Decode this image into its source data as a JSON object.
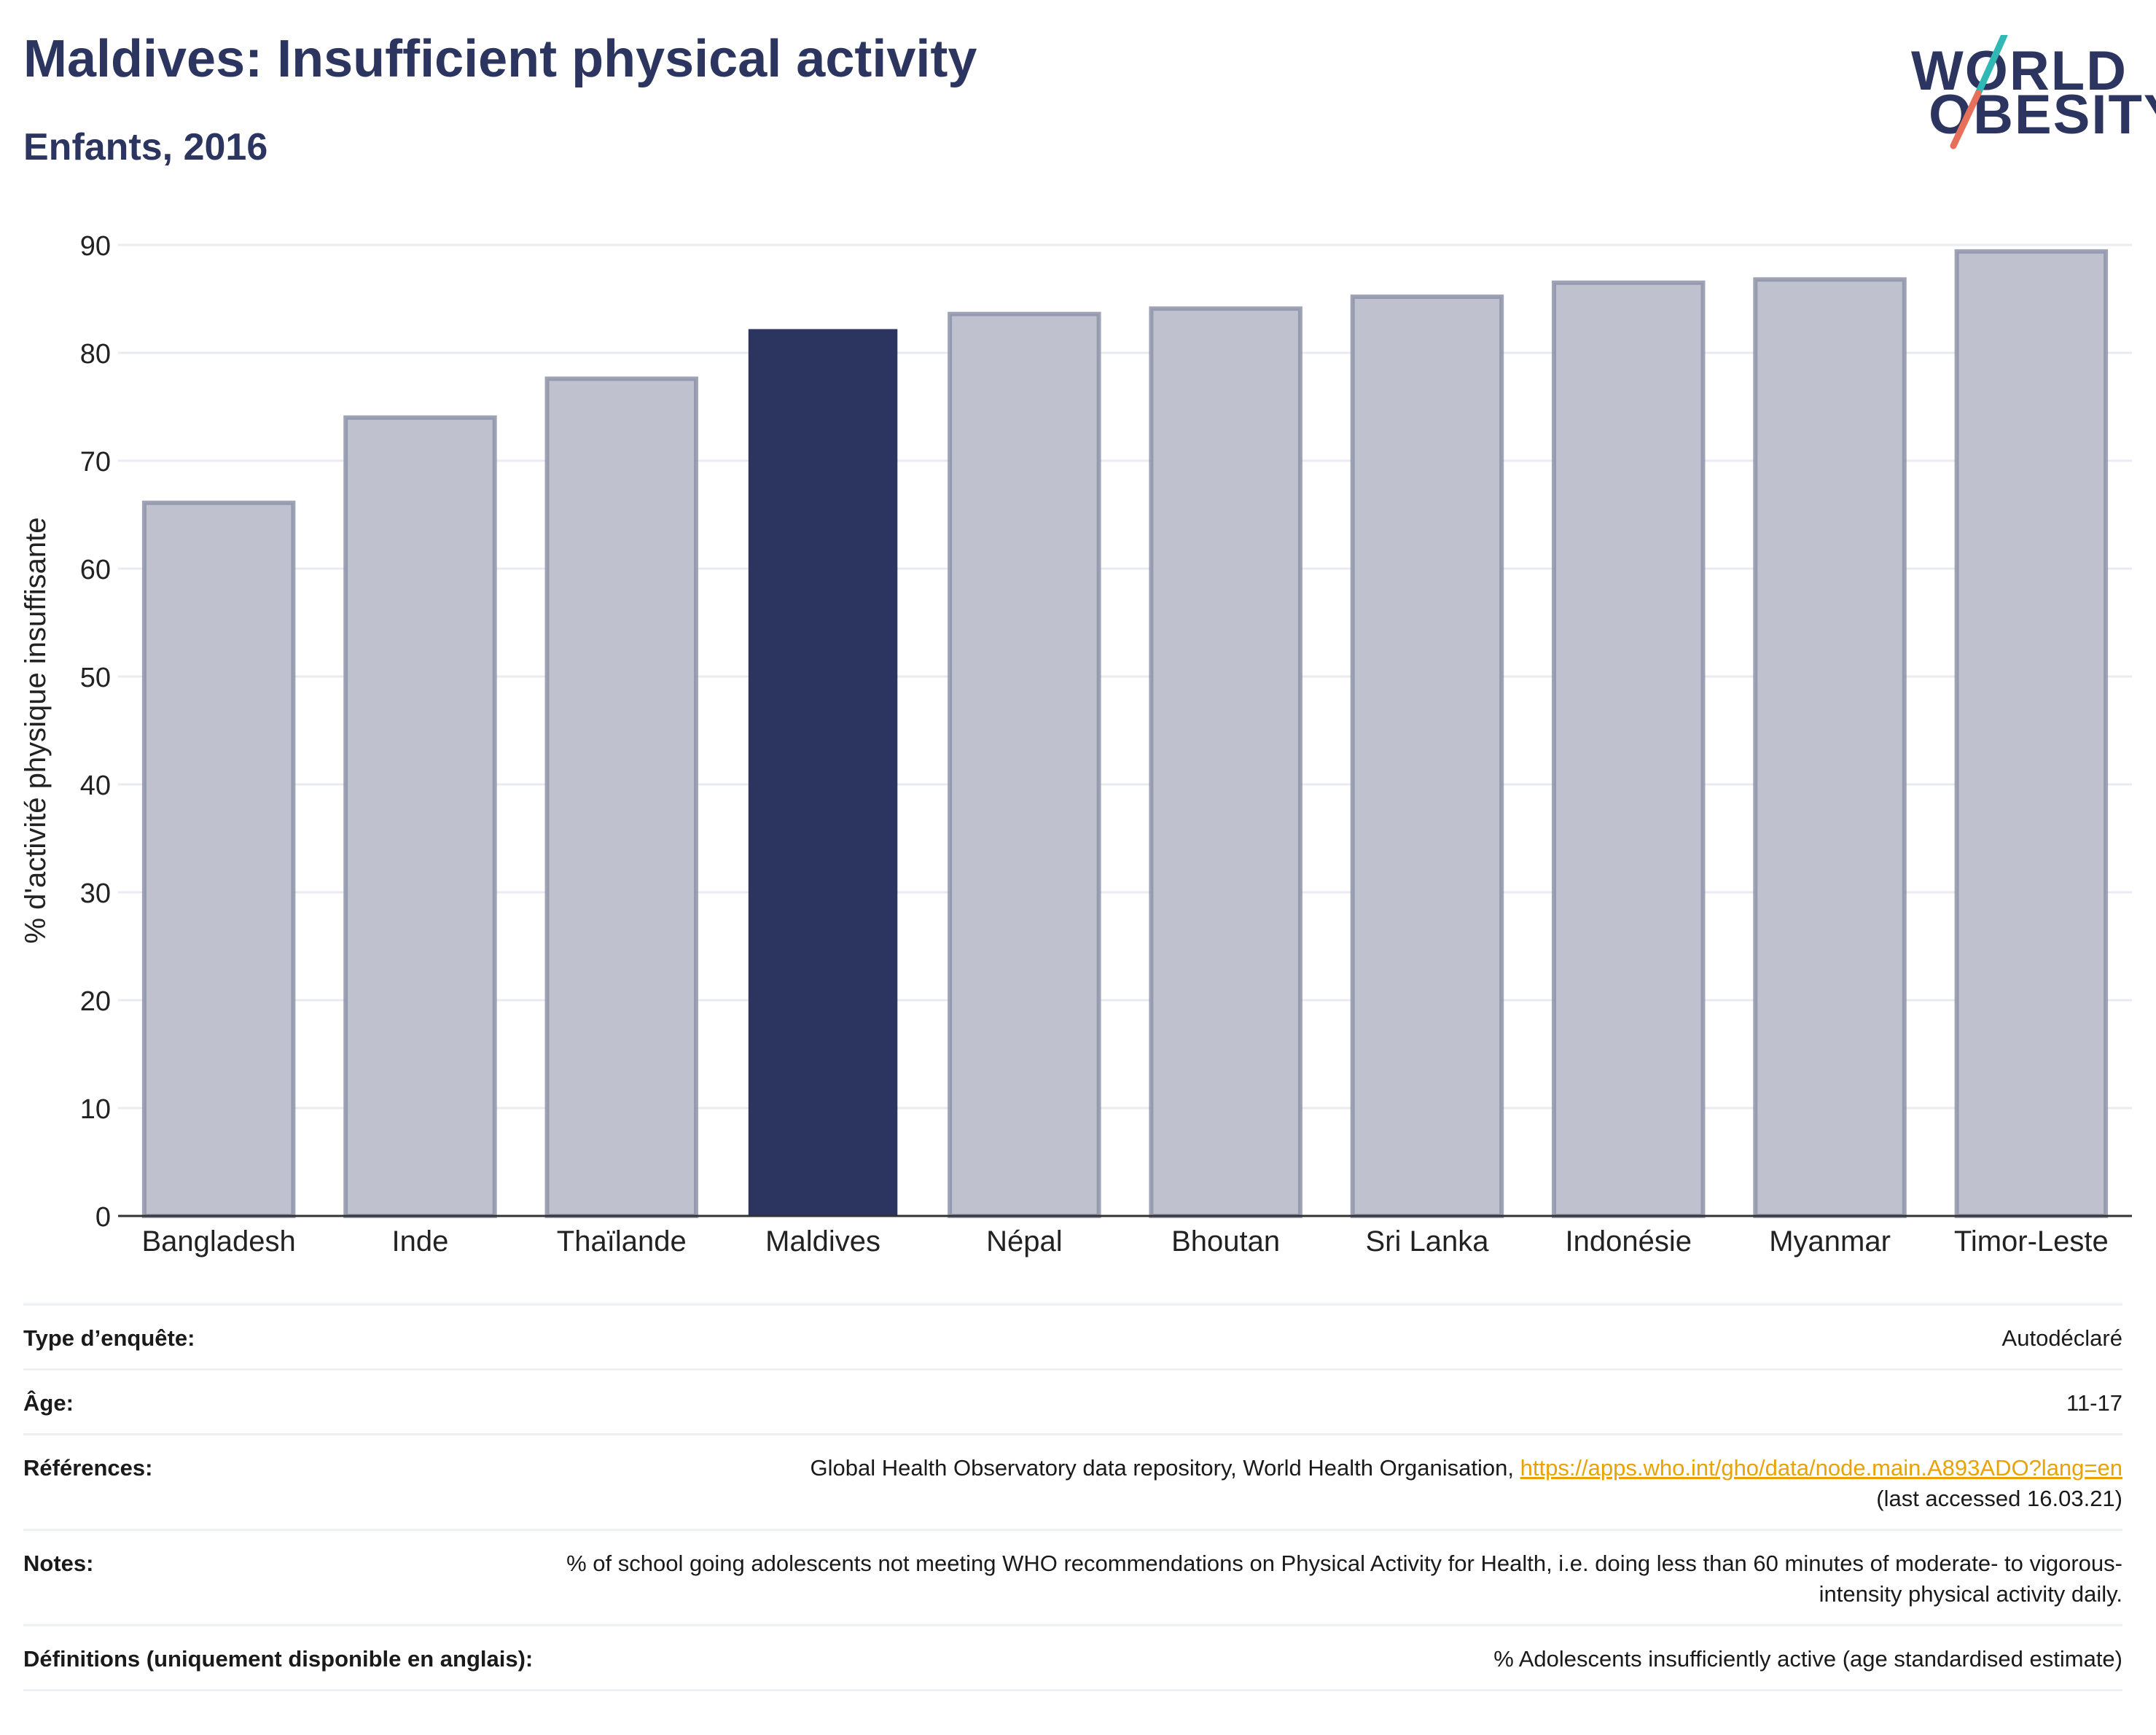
{
  "header": {
    "title": "Maldives: Insufficient physical activity",
    "subtitle": "Enfants, 2016"
  },
  "logo": {
    "line1": "WORLD",
    "line2": "OBESITY"
  },
  "colors": {
    "highlight": "#2b3560",
    "other_fill": "#bfc2ce",
    "other_stroke": "#8e93a9",
    "link": "#e8a300"
  },
  "chart_data": {
    "type": "bar",
    "categories": [
      "Bangladesh",
      "Inde",
      "Thaïlande",
      "Maldives",
      "Népal",
      "Bhoutan",
      "Sri Lanka",
      "Indonésie",
      "Myanmar",
      "Timor-Leste"
    ],
    "values": [
      66.1,
      74.0,
      77.6,
      82.2,
      83.6,
      84.1,
      85.2,
      86.5,
      86.8,
      89.4
    ],
    "highlight": "Maldives",
    "ylabel": "% d'activité physique insuffisante",
    "xlabel": "",
    "ylim": [
      0,
      90
    ],
    "yticks": [
      0,
      10,
      20,
      30,
      40,
      50,
      60,
      70,
      80,
      90
    ],
    "grid": true
  },
  "info": {
    "rows": [
      {
        "label": "Type d’enquête:",
        "value": "Autodéclaré"
      },
      {
        "label": "Âge:",
        "value": "11-17"
      },
      {
        "label": "Références:",
        "value": "Global Health Observatory data repository, World Health Organisation, ",
        "link": "https://apps.who.int/gho/data/node.main.A893ADO?lang=en",
        "value2": "(last accessed 16.03.21)"
      },
      {
        "label": "Notes:",
        "value": "% of school going adolescents not meeting WHO recommendations on Physical Activity for Health, i.e. doing less than 60 minutes of moderate- to vigorous-intensity physical activity daily."
      },
      {
        "label": "Définitions (uniquement disponible en anglais):",
        "value": "% Adolescents insufficiently active (age standardised estimate)"
      }
    ]
  }
}
